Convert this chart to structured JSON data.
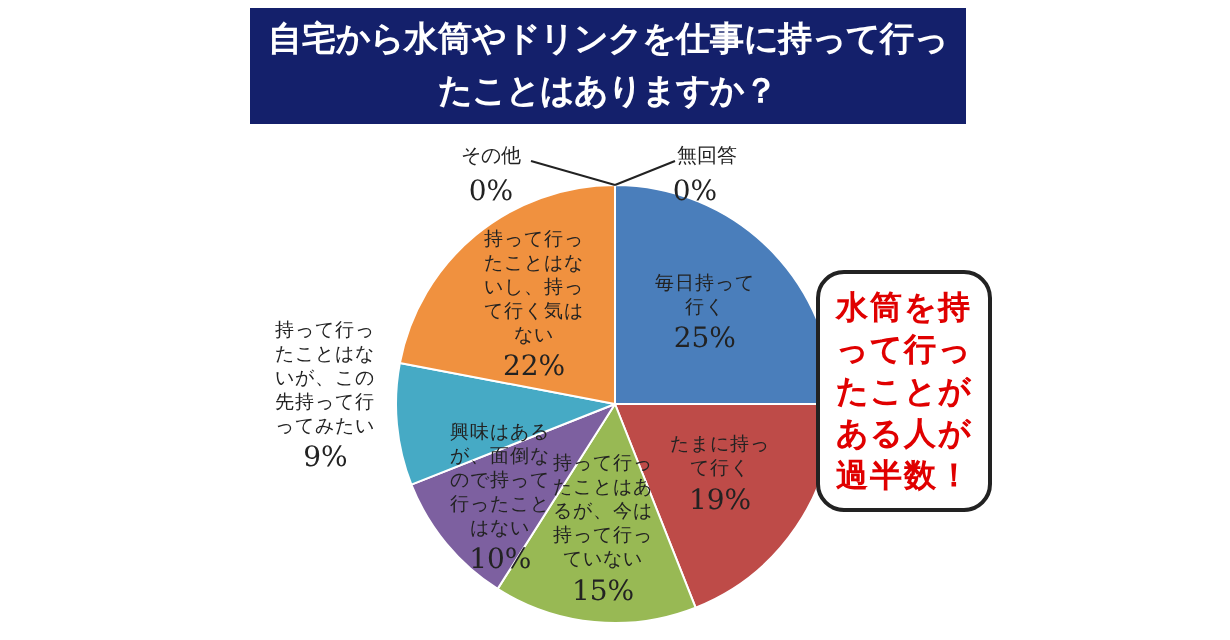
{
  "chart_data": {
    "type": "pie",
    "title": "自宅から水筒やドリンクを仕事に持って行ったことはありますか？",
    "categories": [
      "毎日持って行く",
      "たまに持って行く",
      "持って行ったことはあるが、今は持って行っていない",
      "興味はあるが、面倒なので持って行ったことはない",
      "持って行ったことはないが、この先持って行ってみたい",
      "持って行ったことはないし、持って行く気はない",
      "その他",
      "無回答"
    ],
    "values": [
      25,
      19,
      15,
      10,
      9,
      22,
      0,
      0
    ],
    "colors": [
      "#4a7ebb",
      "#be4b48",
      "#98b954",
      "#7d60a0",
      "#46aac5",
      "#f0913f",
      "#a5a5a5",
      "#2c4d75"
    ],
    "value_labels": [
      "25%",
      "19%",
      "15%",
      "10%",
      "9%",
      "22%",
      "0%",
      "0%"
    ],
    "annotations": [
      "水筒を持って行ったことがある人が過半数！"
    ],
    "legend": false
  }
}
